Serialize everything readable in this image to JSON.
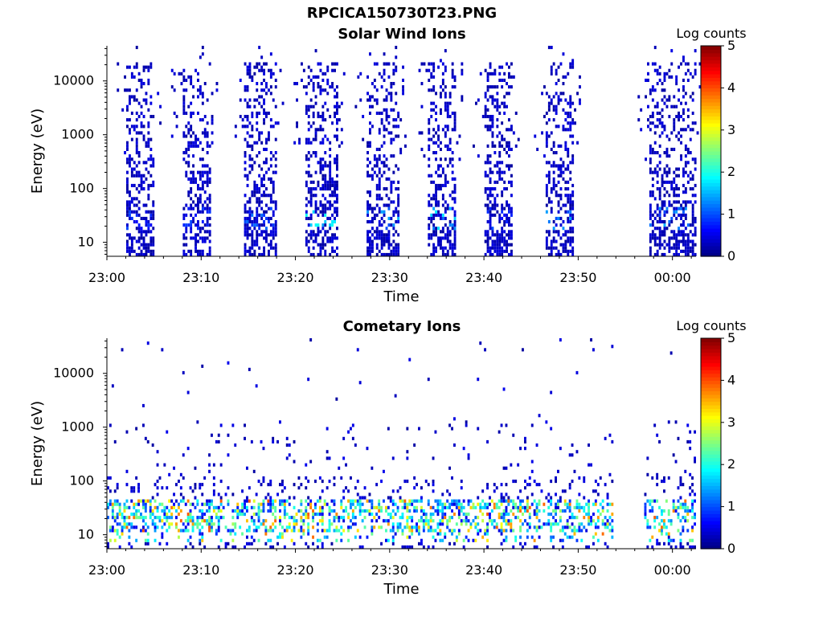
{
  "figure": {
    "title": "RPCICA150730T23.PNG"
  },
  "colorbar": {
    "label": "Log counts",
    "ticks": [
      "0",
      "1",
      "2",
      "3",
      "4",
      "5"
    ],
    "min": 0,
    "max": 5
  },
  "chart_data": [
    {
      "type": "heatmap",
      "title": "Solar Wind Ions",
      "xlabel": "Time",
      "ylabel": "Energy (eV)",
      "y_scale": "log",
      "ylim": [
        5.5,
        45000
      ],
      "y_ticks": [
        "10",
        "100",
        "1000",
        "10000"
      ],
      "xlim": [
        "23:00",
        "00:02:30"
      ],
      "x_ticks": [
        "23:00",
        "23:10",
        "23:20",
        "23:30",
        "23:40",
        "23:50",
        "00:00"
      ],
      "colorbar_label": "Log counts",
      "colorbar_range": [
        0,
        5
      ],
      "bursts": [
        {
          "start": "23:02:00",
          "end": "23:05:00",
          "low_energy_peak_log_counts": 1.0
        },
        {
          "start": "23:08:00",
          "end": "23:11:00",
          "low_energy_peak_log_counts": 1.0
        },
        {
          "start": "23:14:30",
          "end": "23:18:00",
          "low_energy_peak_log_counts": 1.2
        },
        {
          "start": "23:21:00",
          "end": "23:24:30",
          "low_energy_peak_log_counts": 2.0
        },
        {
          "start": "23:27:30",
          "end": "23:31:00",
          "low_energy_peak_log_counts": 1.6
        },
        {
          "start": "23:34:00",
          "end": "23:37:00",
          "low_energy_peak_log_counts": 1.8
        },
        {
          "start": "23:40:00",
          "end": "23:43:00",
          "low_energy_peak_log_counts": 1.0
        },
        {
          "start": "23:46:30",
          "end": "23:49:30",
          "low_energy_peak_log_counts": 1.6
        },
        {
          "start": "23:57:30",
          "end": "00:02:30",
          "low_energy_peak_log_counts": 1.5
        }
      ]
    },
    {
      "type": "heatmap",
      "title": "Cometary Ions",
      "xlabel": "Time",
      "ylabel": "Energy (eV)",
      "y_scale": "log",
      "ylim": [
        5.5,
        45000
      ],
      "y_ticks": [
        "10",
        "100",
        "1000",
        "10000"
      ],
      "xlim": [
        "23:00",
        "00:02:30"
      ],
      "x_ticks": [
        "23:00",
        "23:10",
        "23:20",
        "23:30",
        "23:40",
        "23:50",
        "00:00"
      ],
      "colorbar_label": "Log counts",
      "colorbar_range": [
        0,
        5
      ],
      "dominant_energy_band_eV": [
        10,
        45
      ],
      "peak_log_counts": 4.0
    }
  ]
}
